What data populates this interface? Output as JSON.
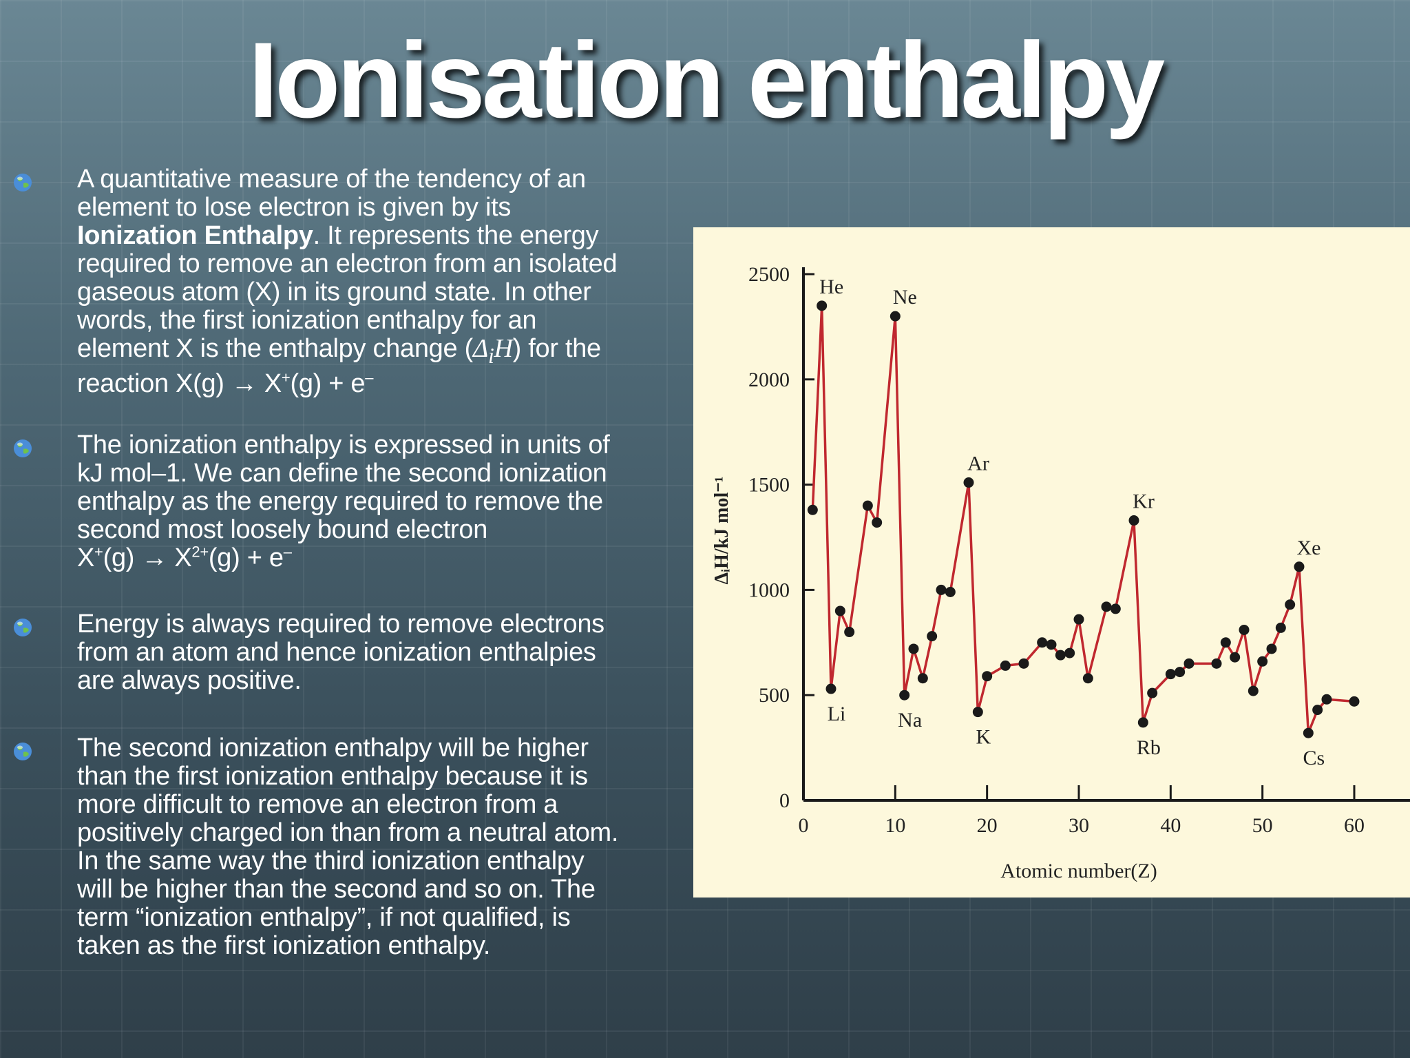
{
  "slide": {
    "title": "Ionisation enthalpy"
  },
  "bullets": [
    {
      "icon": "globe-icon",
      "lines": [
        "A quantitative measure of the tendency of an",
        "element to lose electron is given by its",
        "",
        "required to remove an electron from an isolated",
        "gaseous atom (X) in its ground state. In other",
        "words, the first ionization enthalpy for an",
        "",
        ""
      ],
      "bold_term": "Ionization Enthalpy",
      "after_bold": ". It represents the energy",
      "line7_pre": "element X is the enthalpy change (",
      "line7_sym": "Δ",
      "line7_sub": "i",
      "line7_h": "H",
      "line7_post": ") for the",
      "line8_pre": "reaction X(g) → X",
      "line8_sup": "+",
      "line8_mid": "(g) + e",
      "line8_sup2": "–"
    },
    {
      "icon": "globe-icon",
      "lines": [
        "The ionization enthalpy is expressed in units of",
        "kJ mol–1. We can define the second ionization",
        "enthalpy as the energy required to remove the",
        "second most loosely bound electron"
      ],
      "eq_a": "X",
      "eq_sup1": "+",
      "eq_b": "(g) → X",
      "eq_sup2": "2+",
      "eq_c": "(g) + e",
      "eq_sup3": "–"
    },
    {
      "icon": "globe-icon",
      "lines": [
        "Energy is always required to remove electrons",
        "from an atom and hence ionization enthalpies",
        "are always positive."
      ]
    },
    {
      "icon": "globe-icon",
      "lines": [
        "The second ionization enthalpy will be higher",
        "than the first ionization enthalpy because it is",
        "more difficult to remove an electron from a",
        "positively charged ion than from a neutral atom.",
        "In the same way the third ionization enthalpy",
        "will be higher than the second and so on. The",
        "term “ionization enthalpy”, if not qualified, is",
        "taken as the first ionization enthalpy."
      ]
    }
  ],
  "colors": {
    "line": "#c0282f",
    "point": "#1a1a1a",
    "chart_bg": "#fdf8dc",
    "axis": "#1a1a1a"
  },
  "chart_data": {
    "type": "line",
    "title": "",
    "xlabel": "Atomic number(Z)",
    "ylabel": "ΔᵢH/kJ mol⁻¹",
    "xlim": [
      0,
      60
    ],
    "ylim": [
      0,
      2500
    ],
    "xticks": [
      0,
      10,
      20,
      30,
      40,
      50,
      60
    ],
    "yticks": [
      0,
      500,
      1000,
      1500,
      2000,
      2500
    ],
    "grid": false,
    "series": [
      {
        "x": [
          1,
          2,
          3,
          4,
          5,
          6,
          7,
          8,
          9,
          10,
          11,
          12,
          13,
          14,
          15,
          16,
          17,
          18,
          19,
          20,
          21,
          22,
          23,
          24,
          25,
          26,
          27,
          28,
          29,
          30,
          31,
          32,
          33,
          34,
          35,
          36,
          37,
          38,
          39,
          40,
          41,
          42,
          43,
          44,
          45,
          46,
          47,
          48,
          49,
          50,
          51,
          52,
          53,
          54,
          55,
          56,
          57,
          58,
          59,
          60
        ],
        "y": [
          1312,
          2372,
          520,
          900,
          801,
          1086,
          1402,
          1314,
          1681,
          2081,
          496,
          738,
          578,
          787,
          1012,
          1000,
          1251,
          1521,
          419,
          590,
          633,
          659,
          651,
          653,
          717,
          762,
          760,
          737,
          745,
          906,
          579,
          762,
          947,
          941,
          1140,
          1351,
          403,
          550,
          600,
          640,
          652,
          684,
          702,
          710,
          720,
          804,
          731,
          868,
          558,
          709,
          834,
          869,
          1008,
          1170,
          376,
          503,
          538,
          528,
          523,
          530
        ]
      }
    ],
    "plotted_points": [
      [
        1,
        1380
      ],
      [
        2,
        2350
      ],
      [
        3,
        530
      ],
      [
        4,
        900
      ],
      [
        5,
        800
      ],
      [
        7,
        1400
      ],
      [
        8,
        1320
      ],
      [
        10,
        2300
      ],
      [
        11,
        500
      ],
      [
        12,
        720
      ],
      [
        13,
        580
      ],
      [
        14,
        780
      ],
      [
        15,
        1000
      ],
      [
        16,
        990
      ],
      [
        18,
        1510
      ],
      [
        19,
        420
      ],
      [
        20,
        590
      ],
      [
        22,
        640
      ],
      [
        24,
        650
      ],
      [
        26,
        750
      ],
      [
        27,
        740
      ],
      [
        28,
        690
      ],
      [
        29,
        700
      ],
      [
        30,
        860
      ],
      [
        31,
        580
      ],
      [
        33,
        920
      ],
      [
        34,
        910
      ],
      [
        36,
        1330
      ],
      [
        37,
        370
      ],
      [
        38,
        510
      ],
      [
        40,
        600
      ],
      [
        41,
        610
      ],
      [
        42,
        650
      ],
      [
        45,
        650
      ],
      [
        46,
        750
      ],
      [
        47,
        680
      ],
      [
        48,
        810
      ],
      [
        49,
        520
      ],
      [
        50,
        660
      ],
      [
        51,
        720
      ],
      [
        52,
        820
      ],
      [
        53,
        930
      ],
      [
        54,
        1110
      ],
      [
        55,
        320
      ],
      [
        56,
        430
      ],
      [
        57,
        480
      ],
      [
        60,
        470
      ]
    ],
    "annotations": [
      {
        "label": "He",
        "x": 2,
        "y": 2350
      },
      {
        "label": "Ne",
        "x": 10,
        "y": 2300
      },
      {
        "label": "Ar",
        "x": 18,
        "y": 1510
      },
      {
        "label": "Kr",
        "x": 36,
        "y": 1330
      },
      {
        "label": "Xe",
        "x": 54,
        "y": 1110
      },
      {
        "label": "Li",
        "x": 3,
        "y": 530
      },
      {
        "label": "Na",
        "x": 11,
        "y": 500
      },
      {
        "label": "K",
        "x": 19,
        "y": 420
      },
      {
        "label": "Rb",
        "x": 37,
        "y": 370
      },
      {
        "label": "Cs",
        "x": 55,
        "y": 320
      }
    ]
  }
}
